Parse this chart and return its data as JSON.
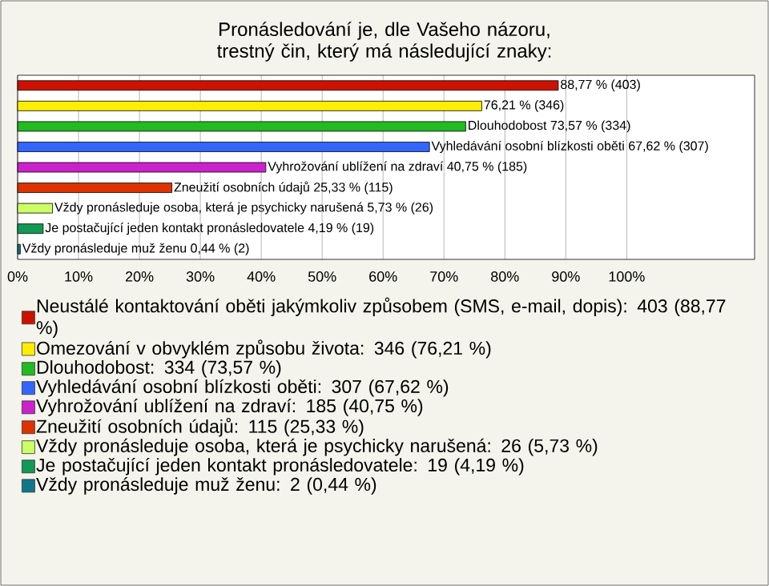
{
  "chart_data": {
    "type": "bar",
    "orientation": "horizontal",
    "title": "Pronásledování je, dle Vašeho názoru, trestný čin, který má následující znaky:",
    "categories": [
      null,
      null,
      null,
      null,
      null,
      null,
      null,
      null,
      null
    ],
    "series": [
      {
        "name": "Neustálé kontaktování oběti jakýmkoliv způsobem (SMS, e-mail, dopis): 403 (88,77 %)",
        "color": "#cc1100",
        "values": [
          88.77,
          null,
          null,
          null,
          null,
          null,
          null,
          null,
          null
        ],
        "value_labels": [
          "88,77 % (403)",
          null,
          null,
          null,
          null,
          null,
          null,
          null,
          null
        ]
      },
      {
        "name": "Omezování v obvyklém způsobu života: 346 (76,21 %)",
        "color": "#ffee00",
        "values": [
          null,
          76.21,
          null,
          null,
          null,
          null,
          null,
          null,
          null
        ],
        "value_labels": [
          null,
          "76,21 % (346)",
          null,
          null,
          null,
          null,
          null,
          null,
          null
        ]
      },
      {
        "name": "Dlouhodobost: 334 (73,57 %)",
        "color": "#22bb22",
        "values": [
          null,
          null,
          73.57,
          null,
          null,
          null,
          null,
          null,
          null
        ],
        "value_labels": [
          null,
          null,
          "Dlouhodobost 73,57 % (334)",
          null,
          null,
          null,
          null,
          null,
          null
        ]
      },
      {
        "name": "Vyhledávání osobní blízkosti oběti: 307 (67,62 %)",
        "color": "#3366ff",
        "values": [
          null,
          null,
          null,
          67.62,
          null,
          null,
          null,
          null,
          null
        ],
        "value_labels": [
          null,
          null,
          null,
          "Vyhledávání osobní blízkosti oběti 67,62 % (307)",
          null,
          null,
          null,
          null,
          null
        ]
      },
      {
        "name": "Vyhrožování ublížení na zdraví: 185 (40,75 %)",
        "color": "#cc22cc",
        "values": [
          null,
          null,
          null,
          null,
          40.75,
          null,
          null,
          null,
          null
        ],
        "value_labels": [
          null,
          null,
          null,
          null,
          "Vyhrožování ublížení na zdraví 40,75 % (185)",
          null,
          null,
          null,
          null
        ]
      },
      {
        "name": "Zneužití osobních údajů: 115 (25,33 %)",
        "color": "#dd3300",
        "values": [
          null,
          null,
          null,
          null,
          null,
          25.33,
          null,
          null,
          null
        ],
        "value_labels": [
          null,
          null,
          null,
          null,
          null,
          "Zneužití osobních údajů 25,33 % (115)",
          null,
          null,
          null
        ]
      },
      {
        "name": "Vždy pronásleduje osoba, která je psychicky narušená: 26 (5,73 %)",
        "color": "#ccff66",
        "values": [
          null,
          null,
          null,
          null,
          null,
          null,
          5.73,
          null,
          null
        ],
        "value_labels": [
          null,
          null,
          null,
          null,
          null,
          null,
          "Vždy pronásleduje osoba, která je psychicky narušená 5,73 % (26)",
          null,
          null
        ]
      },
      {
        "name": "Je postačující jeden kontakt pronásledovatele: 19 (4,19 %)",
        "color": "#119955",
        "values": [
          null,
          null,
          null,
          null,
          null,
          null,
          null,
          4.19,
          null
        ],
        "value_labels": [
          null,
          null,
          null,
          null,
          null,
          null,
          null,
          "Je postačující jeden kontakt pronásledovatele 4,19 % (19)",
          null
        ]
      },
      {
        "name": "Vždy pronásleduje muž ženu: 2 (0,44 %)",
        "color": "#117788",
        "values": [
          null,
          null,
          null,
          null,
          null,
          null,
          null,
          null,
          0.44
        ],
        "value_labels": [
          null,
          null,
          null,
          null,
          null,
          null,
          null,
          null,
          "Vždy pronásleduje muž ženu 0,44 % (2)"
        ]
      }
    ],
    "xlim": [
      0,
      121
    ],
    "xticks": [
      {
        "value": 0,
        "label": "0%"
      },
      {
        "value": 10,
        "label": "10%"
      },
      {
        "value": 20,
        "label": "20%"
      },
      {
        "value": 30,
        "label": "30%"
      },
      {
        "value": 40,
        "label": "40%"
      },
      {
        "value": 50,
        "label": "50%"
      },
      {
        "value": 60,
        "label": "60%"
      },
      {
        "value": 70,
        "label": "70%"
      },
      {
        "value": 80,
        "label": "80%"
      },
      {
        "value": 90,
        "label": "90%"
      },
      {
        "value": 100,
        "label": "100%"
      }
    ],
    "grid": "x",
    "legend": "bottom"
  }
}
